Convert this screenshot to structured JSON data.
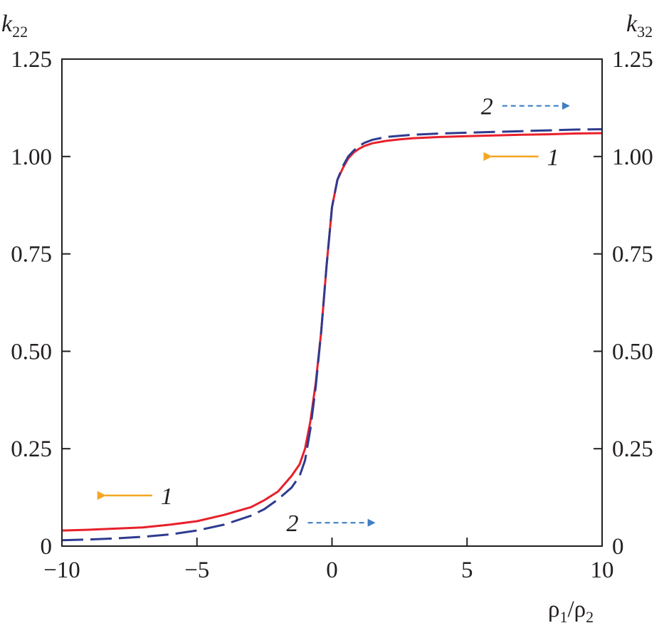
{
  "chart_data": {
    "type": "line",
    "xlabel": "ρ1/ρ2",
    "xlabel_parts": {
      "base1": "ρ",
      "sub1": "1",
      "sep": "/",
      "base2": "ρ",
      "sub2": "2"
    },
    "ylabel_left": {
      "base": "k",
      "sub": "22"
    },
    "ylabel_right": {
      "base": "k",
      "sub": "32"
    },
    "xlim": [
      -10,
      10
    ],
    "ylim": [
      0,
      1.25
    ],
    "x_ticks": [
      -10,
      -5,
      0,
      5,
      10
    ],
    "x_tick_labels": [
      "−10",
      "−5",
      "0",
      "5",
      "10"
    ],
    "y_ticks": [
      0,
      0.25,
      0.5,
      0.75,
      1.0,
      1.25
    ],
    "y_tick_labels": [
      "0",
      "0.25",
      "0.50",
      "0.75",
      "1.00",
      "1.25"
    ],
    "grid": false,
    "series": [
      {
        "name": "1",
        "axis": "left",
        "color": "#e8202a",
        "style": "solid",
        "x": [
          -10,
          -9,
          -8,
          -7,
          -6,
          -5,
          -4,
          -3,
          -2.5,
          -2,
          -1.5,
          -1.2,
          -1,
          -0.8,
          -0.6,
          -0.4,
          -0.2,
          0,
          0.2,
          0.4,
          0.6,
          0.8,
          1,
          1.2,
          1.5,
          2,
          2.5,
          3,
          4,
          5,
          6,
          7,
          8,
          9,
          10
        ],
        "y": [
          0.04,
          0.042,
          0.045,
          0.048,
          0.055,
          0.064,
          0.08,
          0.1,
          0.118,
          0.14,
          0.18,
          0.21,
          0.25,
          0.32,
          0.42,
          0.55,
          0.72,
          0.87,
          0.94,
          0.97,
          0.995,
          1.01,
          1.02,
          1.027,
          1.034,
          1.04,
          1.044,
          1.047,
          1.05,
          1.052,
          1.054,
          1.056,
          1.057,
          1.059,
          1.06
        ]
      },
      {
        "name": "2",
        "axis": "right",
        "color": "#2e3b8f",
        "style": "dashed",
        "x": [
          -10,
          -9,
          -8,
          -7,
          -6,
          -5,
          -4,
          -3,
          -2.5,
          -2,
          -1.5,
          -1.2,
          -1,
          -0.8,
          -0.6,
          -0.4,
          -0.2,
          0,
          0.2,
          0.4,
          0.6,
          0.8,
          1,
          1.2,
          1.5,
          2,
          2.5,
          3,
          4,
          5,
          6,
          7,
          8,
          9,
          10
        ],
        "y": [
          0.015,
          0.017,
          0.02,
          0.024,
          0.03,
          0.04,
          0.055,
          0.078,
          0.095,
          0.12,
          0.15,
          0.18,
          0.22,
          0.3,
          0.41,
          0.55,
          0.72,
          0.87,
          0.94,
          0.975,
          1.0,
          1.015,
          1.027,
          1.035,
          1.043,
          1.05,
          1.053,
          1.056,
          1.059,
          1.061,
          1.063,
          1.065,
          1.067,
          1.069,
          1.07
        ]
      }
    ],
    "annotations": [
      {
        "label": "1",
        "series": "1",
        "axis_side": "left",
        "x": -8.5,
        "y": 0.13,
        "arrow_color": "#f5a623",
        "arrow_style": "solid",
        "arrow_direction": "left"
      },
      {
        "label": "1",
        "series": "1",
        "axis_side": "left",
        "x": 5.8,
        "y": 1.0,
        "arrow_color": "#f5a623",
        "arrow_style": "solid",
        "arrow_direction": "left"
      },
      {
        "label": "2",
        "series": "2",
        "axis_side": "right",
        "x": -1.0,
        "y": 0.06,
        "arrow_color": "#3f7fc4",
        "arrow_style": "dashed",
        "arrow_direction": "right"
      },
      {
        "label": "2",
        "series": "2",
        "axis_side": "right",
        "x": 6.2,
        "y": 1.13,
        "arrow_color": "#3f7fc4",
        "arrow_style": "dashed",
        "arrow_direction": "right"
      }
    ]
  }
}
